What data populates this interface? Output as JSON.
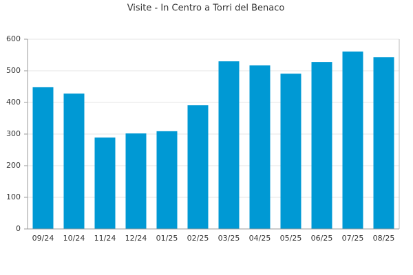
{
  "chart_data": {
    "type": "bar",
    "title": "Visite - In Centro a Torri del Benaco",
    "categories": [
      "09/24",
      "10/24",
      "11/24",
      "12/24",
      "01/25",
      "02/25",
      "03/25",
      "04/25",
      "05/25",
      "06/25",
      "07/25",
      "08/25"
    ],
    "values": [
      448,
      428,
      289,
      302,
      309,
      391,
      530,
      517,
      491,
      528,
      561,
      543
    ],
    "color": "#0099d4",
    "ylim": [
      0,
      600
    ],
    "yticks": [
      0,
      100,
      200,
      300,
      400,
      500,
      600
    ],
    "grid": true
  }
}
